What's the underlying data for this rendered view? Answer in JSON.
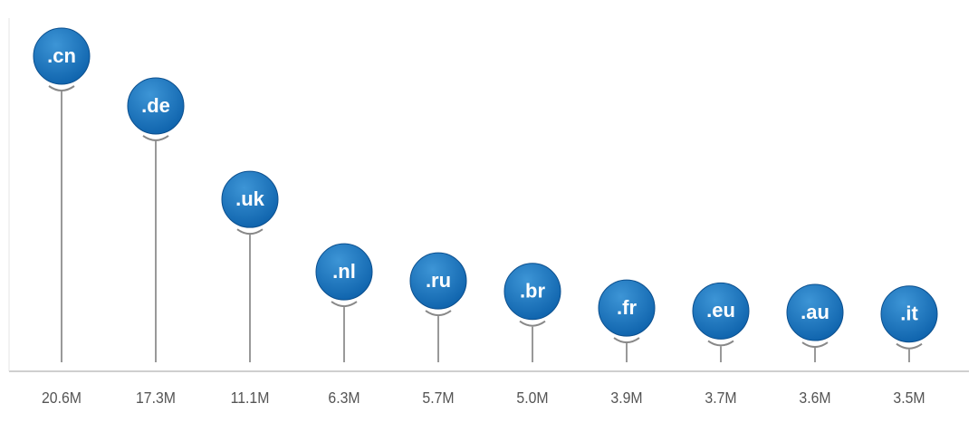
{
  "chart_data": {
    "type": "lollipop",
    "categories": [
      ".cn",
      ".de",
      ".uk",
      ".nl",
      ".ru",
      ".br",
      ".fr",
      ".eu",
      ".au",
      ".it"
    ],
    "values": [
      20.6,
      17.3,
      11.1,
      6.3,
      5.7,
      5.0,
      3.9,
      3.7,
      3.6,
      3.5
    ],
    "value_labels": [
      "20.6M",
      "17.3M",
      "11.1M",
      "6.3M",
      "5.7M",
      "5.0M",
      "3.9M",
      "3.7M",
      "3.6M",
      "3.5M"
    ],
    "color": "#1670b8"
  }
}
